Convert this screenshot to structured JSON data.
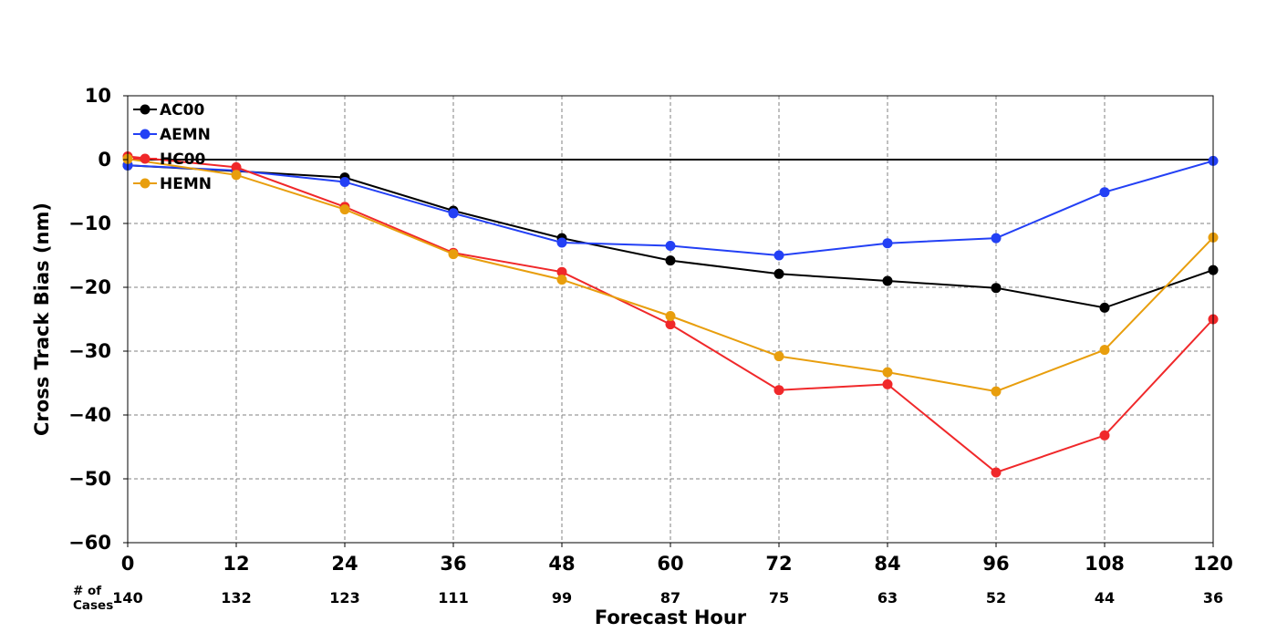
{
  "chart_data": {
    "type": "line",
    "xlabel": "Forecast Hour",
    "ylabel": "Cross Track Bias (nm)",
    "xlim": [
      0,
      120
    ],
    "ylim": [
      -60,
      10
    ],
    "x_ticks": [
      "0",
      "12",
      "24",
      "36",
      "48",
      "60",
      "72",
      "84",
      "96",
      "108",
      "120"
    ],
    "y_ticks": [
      "10",
      "0",
      "−10",
      "−20",
      "−30",
      "−40",
      "−50",
      "−60"
    ],
    "x": [
      0,
      12,
      24,
      36,
      48,
      60,
      72,
      84,
      96,
      108,
      120
    ],
    "grid": true,
    "zero_line": true,
    "legend_placement": "top-left",
    "cases_title": "# of\nCases",
    "cases": [
      "140",
      "132",
      "123",
      "111",
      "99",
      "87",
      "75",
      "63",
      "52",
      "44",
      "36"
    ],
    "series": [
      {
        "name": "AC00",
        "color": "#000000",
        "values": [
          -0.9,
          -1.8,
          -2.8,
          -8.0,
          -12.3,
          -15.8,
          -17.9,
          -19.0,
          -20.1,
          -23.2,
          -17.3
        ]
      },
      {
        "name": "AEMN",
        "color": "#2340f5",
        "values": [
          -0.9,
          -1.7,
          -3.5,
          -8.4,
          -13.0,
          -13.5,
          -15.0,
          -13.1,
          -12.3,
          -5.1,
          -0.2
        ]
      },
      {
        "name": "HC00",
        "color": "#f0282a",
        "values": [
          0.5,
          -1.2,
          -7.4,
          -14.6,
          -17.6,
          -25.8,
          -36.1,
          -35.2,
          -49.0,
          -43.2,
          -25.0
        ]
      },
      {
        "name": "HEMN",
        "color": "#e89e0d",
        "values": [
          0.1,
          -2.4,
          -7.8,
          -14.8,
          -18.8,
          -24.5,
          -30.8,
          -33.3,
          -36.3,
          -29.8,
          -12.2
        ]
      }
    ]
  }
}
